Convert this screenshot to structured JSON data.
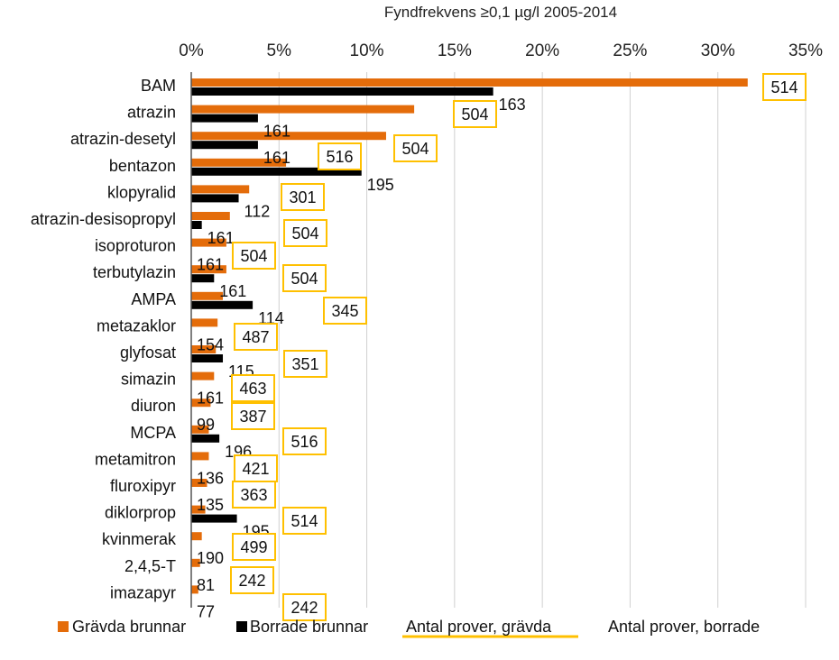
{
  "chart_data": {
    "type": "bar",
    "orientation": "horizontal",
    "title": "Fyndfrekvens ≥0,1 µg/l 2005-2014",
    "x_axis": {
      "range": [
        0,
        35
      ],
      "unit": "%",
      "ticks": [
        "0%",
        "5%",
        "10%",
        "15%",
        "20%",
        "25%",
        "30%",
        "35%"
      ],
      "position": "top",
      "gridlines": true
    },
    "categories": [
      "BAM",
      "atrazin",
      "atrazin-desetyl",
      "bentazon",
      "klopyralid",
      "atrazin-desisopropyl",
      "isoproturon",
      "terbutylazin",
      "AMPA",
      "metazaklor",
      "glyfosat",
      "simazin",
      "diuron",
      "MCPA",
      "metamitron",
      "fluroxipyr",
      "diklorprop",
      "kvinmerak",
      "2,4,5-T",
      "imazapyr"
    ],
    "series": [
      {
        "name": "Grävda brunnar",
        "color": "#E46C0A",
        "values": [
          31.7,
          12.7,
          11.1,
          5.4,
          3.3,
          2.2,
          2.0,
          2.0,
          1.8,
          1.5,
          1.4,
          1.3,
          1.1,
          1.0,
          1.0,
          0.9,
          0.8,
          0.6,
          0.5,
          0.4
        ]
      },
      {
        "name": "Borrade brunnar",
        "color": "#000000",
        "values": [
          17.2,
          3.8,
          3.8,
          9.7,
          2.7,
          0.6,
          0.0,
          1.3,
          3.5,
          0.0,
          1.8,
          0.0,
          0.0,
          1.6,
          0.0,
          0.0,
          2.6,
          0.0,
          0.0,
          0.0
        ]
      }
    ],
    "annotations": {
      "antal_prover_gravda": {
        "name": "Antal prover, grävda",
        "color": "#FFC000",
        "values": [
          "514",
          "504",
          "504",
          "516",
          "301",
          "504",
          "504",
          "504",
          "345",
          "487",
          "351",
          "463",
          "387",
          "516",
          "421",
          "363",
          "514",
          "499",
          "242",
          "242"
        ]
      },
      "antal_prover_borrade": {
        "name": "Antal prover, borrade",
        "values": [
          "163",
          "161",
          "161",
          "195",
          "112",
          "161",
          "161",
          "161",
          "114",
          "154",
          "115",
          "161",
          "99",
          "196",
          "136",
          "135",
          "195",
          "190",
          "81",
          "77"
        ]
      }
    },
    "grid": true,
    "legend_position": "bottom"
  }
}
